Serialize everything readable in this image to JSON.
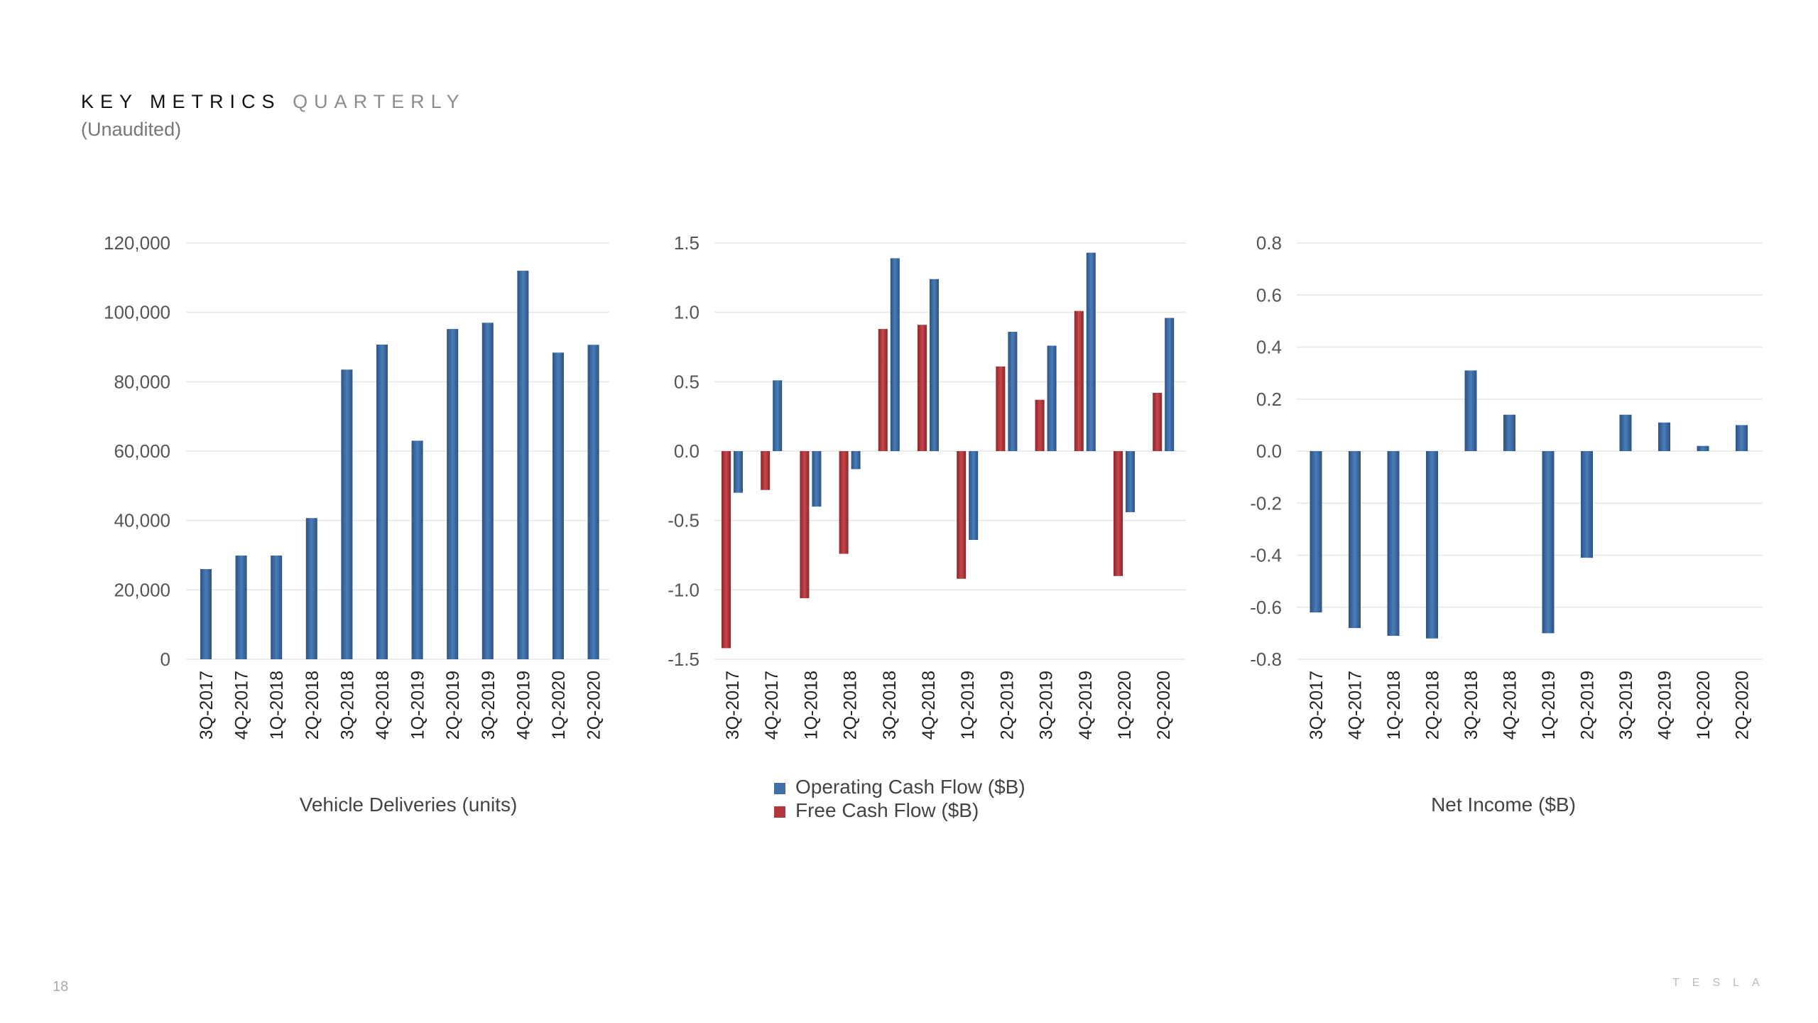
{
  "header": {
    "title_main": "KEY METRICS",
    "title_accent": "QUARTERLY",
    "subtitle": "(Unaudited)"
  },
  "footer": {
    "page_number": "18",
    "brand": "TESLA"
  },
  "colors": {
    "blue": "#3f6fa6",
    "blue_dark": "#2c5283",
    "red": "#b3363a",
    "red_dark": "#8e2529",
    "grid": "#e6e6e6",
    "tick_text": "#555555"
  },
  "chart_data": [
    {
      "type": "bar",
      "title": "",
      "xlabel": "Vehicle Deliveries (units)",
      "ylabel": "",
      "categories": [
        "3Q-2017",
        "4Q-2017",
        "1Q-2018",
        "2Q-2018",
        "3Q-2018",
        "4Q-2018",
        "1Q-2019",
        "2Q-2019",
        "3Q-2019",
        "4Q-2019",
        "1Q-2020",
        "2Q-2020"
      ],
      "series": [
        {
          "values": [
            26000,
            29900,
            29900,
            40700,
            83500,
            90700,
            63000,
            95200,
            97000,
            112000,
            88400,
            90650
          ]
        }
      ],
      "ylim": [
        0,
        120000
      ],
      "yticks": [
        0,
        20000,
        40000,
        60000,
        80000,
        100000,
        120000
      ],
      "yticklabels": [
        "0",
        "20,000",
        "40,000",
        "60,000",
        "80,000",
        "100,000",
        "120,000"
      ],
      "grid": true
    },
    {
      "type": "bar",
      "title": "",
      "xlabel": "",
      "ylabel": "",
      "categories": [
        "3Q-2017",
        "4Q-2017",
        "1Q-2018",
        "2Q-2018",
        "3Q-2018",
        "4Q-2018",
        "1Q-2019",
        "2Q-2019",
        "3Q-2019",
        "4Q-2019",
        "1Q-2020",
        "2Q-2020"
      ],
      "series": [
        {
          "name": "Free Cash Flow ($B)",
          "color": "red",
          "values": [
            -1.42,
            -0.28,
            -1.06,
            -0.74,
            0.88,
            0.91,
            -0.92,
            0.61,
            0.37,
            1.01,
            -0.9,
            0.42
          ]
        },
        {
          "name": "Operating Cash Flow ($B)",
          "color": "blue",
          "values": [
            -0.3,
            0.51,
            -0.4,
            -0.13,
            1.39,
            1.24,
            -0.64,
            0.86,
            0.76,
            1.43,
            -0.44,
            0.96
          ]
        }
      ],
      "legend": [
        {
          "label": "Operating Cash Flow ($B)",
          "color": "blue"
        },
        {
          "label": "Free Cash Flow ($B)",
          "color": "red"
        }
      ],
      "legend_position": "bottom",
      "ylim": [
        -1.5,
        1.5
      ],
      "yticks": [
        -1.5,
        -1.0,
        -0.5,
        0.0,
        0.5,
        1.0,
        1.5
      ],
      "yticklabels": [
        "-1.5",
        "-1.0",
        "-0.5",
        "0.0",
        "0.5",
        "1.0",
        "1.5"
      ],
      "grid": true
    },
    {
      "type": "bar",
      "title": "",
      "xlabel": "Net Income ($B)",
      "ylabel": "",
      "categories": [
        "3Q-2017",
        "4Q-2017",
        "1Q-2018",
        "2Q-2018",
        "3Q-2018",
        "4Q-2018",
        "1Q-2019",
        "2Q-2019",
        "3Q-2019",
        "4Q-2019",
        "1Q-2020",
        "2Q-2020"
      ],
      "series": [
        {
          "values": [
            -0.62,
            -0.68,
            -0.71,
            -0.72,
            0.31,
            0.14,
            -0.7,
            -0.41,
            0.14,
            0.11,
            0.02,
            0.1
          ]
        }
      ],
      "ylim": [
        -0.8,
        0.8
      ],
      "yticks": [
        -0.8,
        -0.6,
        -0.4,
        -0.2,
        0.0,
        0.2,
        0.4,
        0.6,
        0.8
      ],
      "yticklabels": [
        "-0.8",
        "-0.6",
        "-0.4",
        "-0.2",
        "0.0",
        "0.2",
        "0.4",
        "0.6",
        "0.8"
      ],
      "grid": true
    }
  ]
}
